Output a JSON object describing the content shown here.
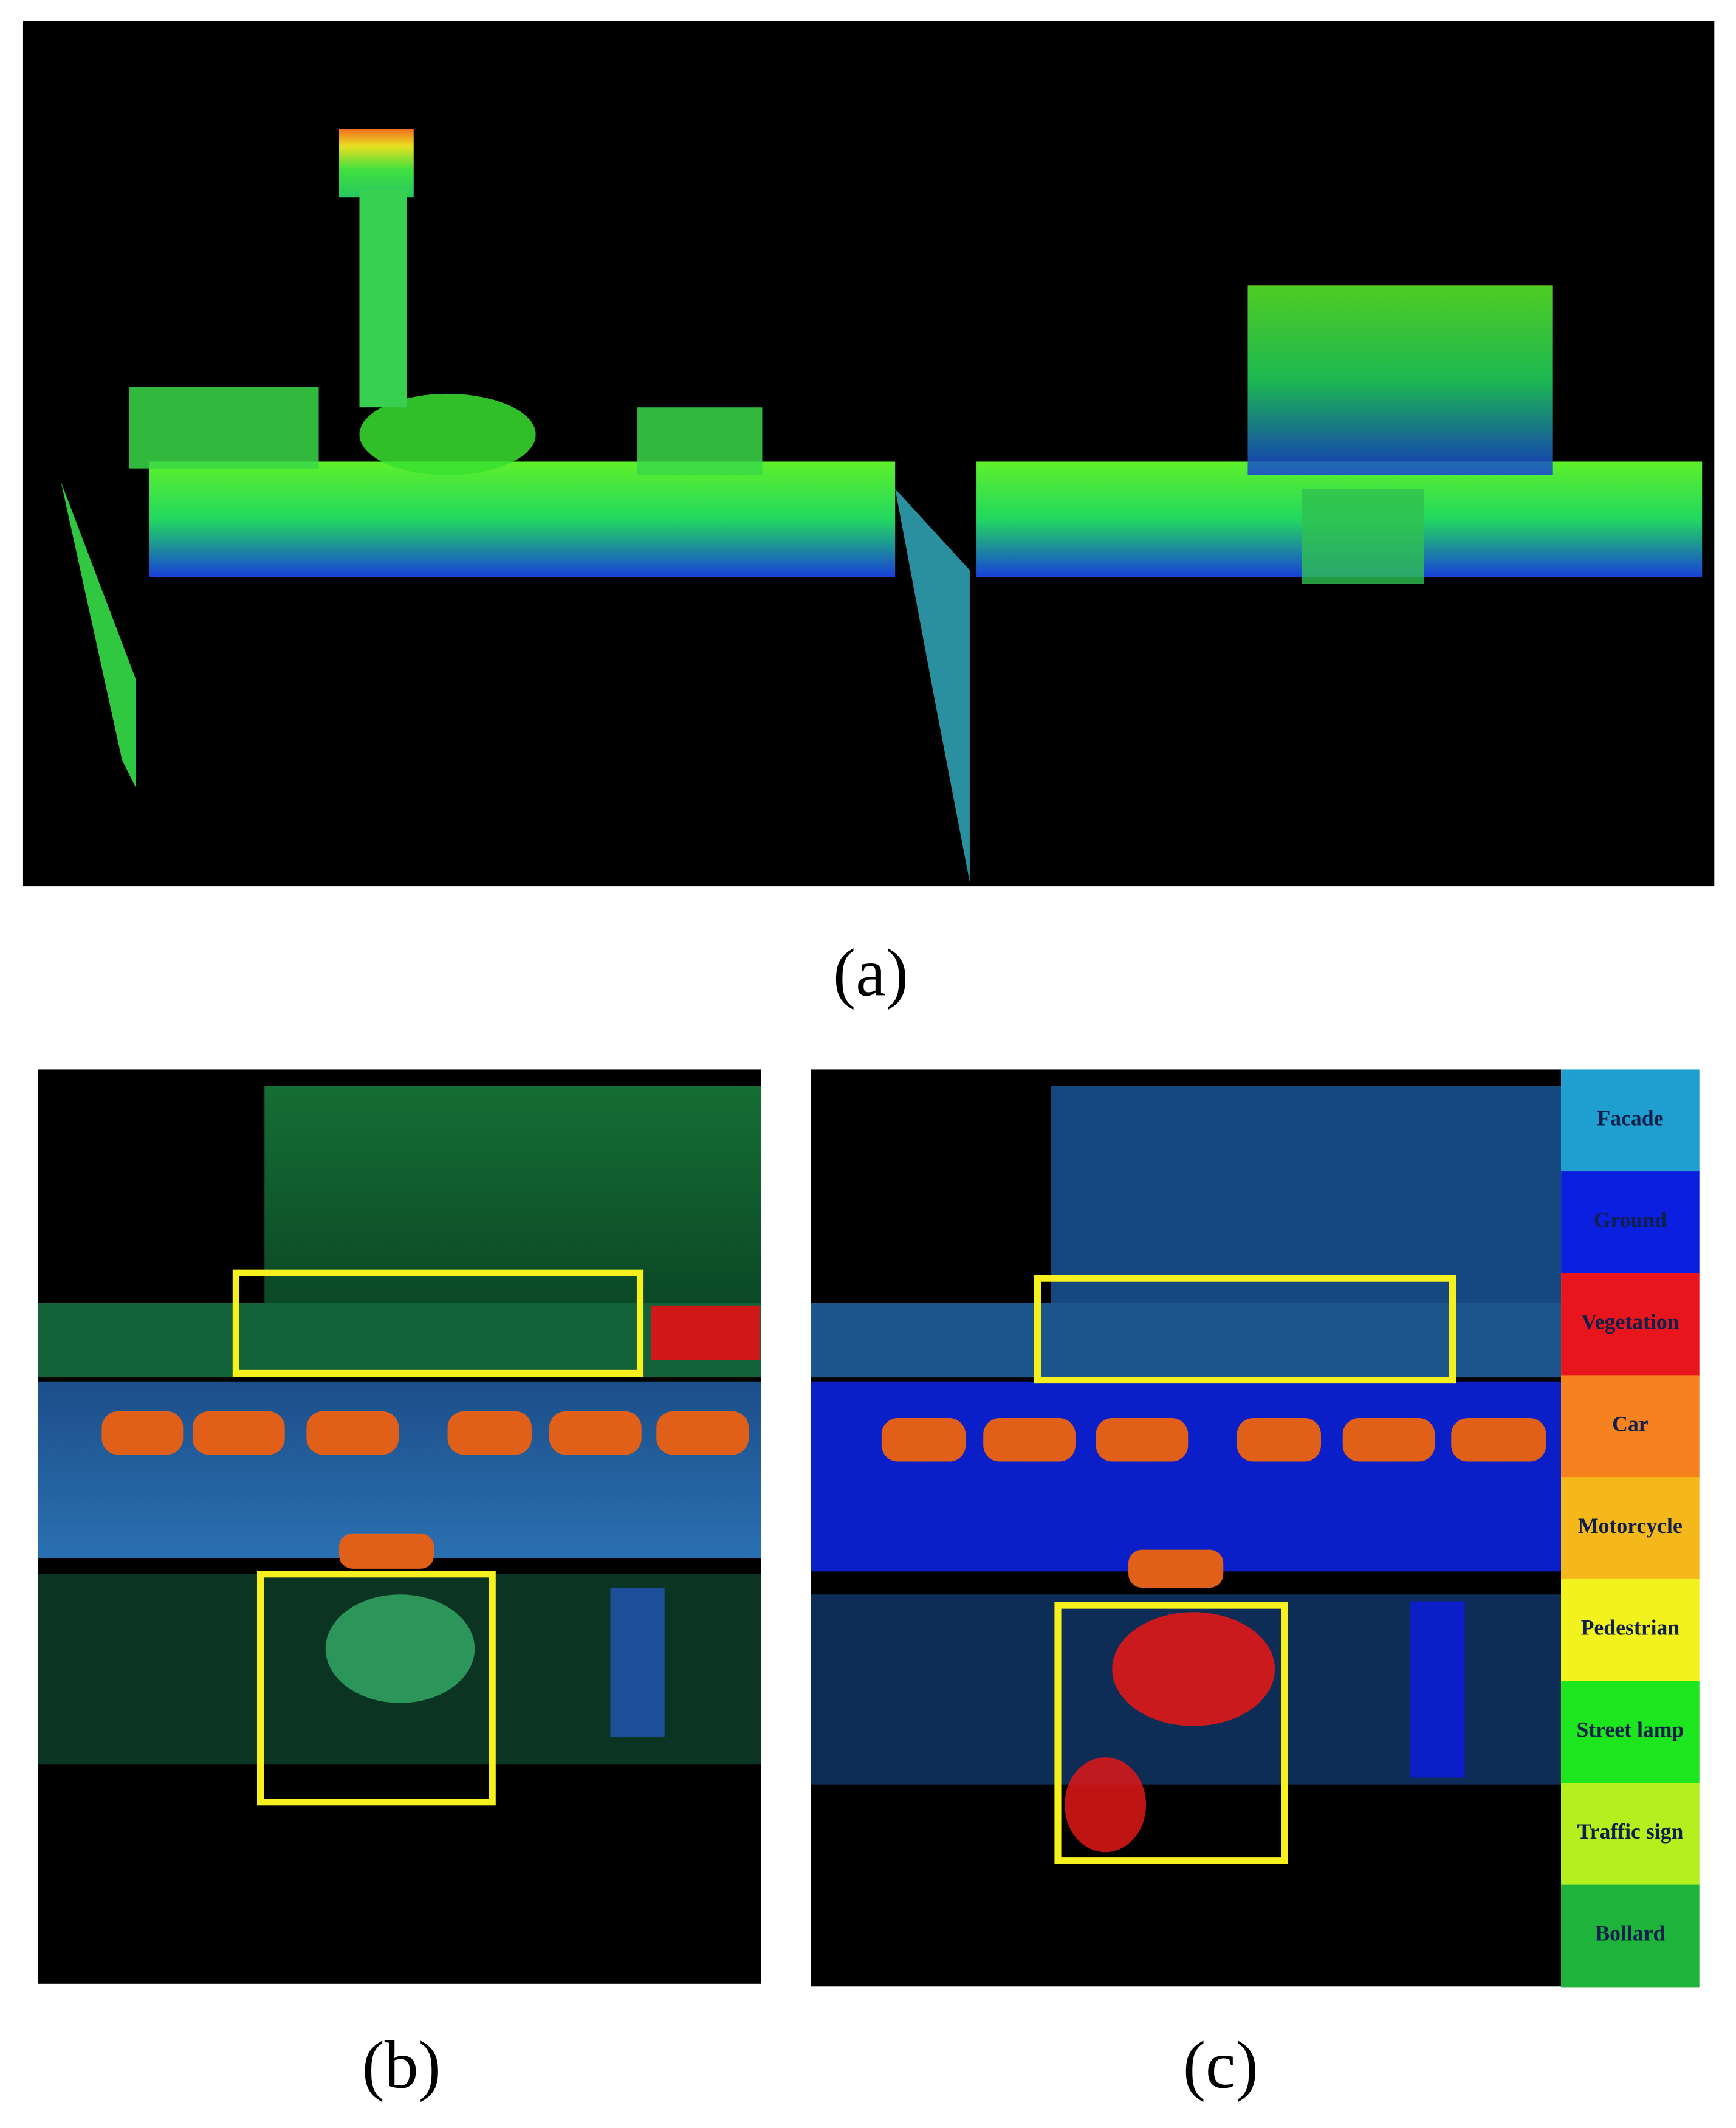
{
  "captions": {
    "a": "(a)",
    "b": "(b)",
    "c": "(c)"
  },
  "legend": [
    {
      "label": "Facade",
      "color": "#1e9fd0"
    },
    {
      "label": "Ground",
      "color": "#0a1fe0"
    },
    {
      "label": "Vegetation",
      "color": "#e8161c"
    },
    {
      "label": "Car",
      "color": "#f5821f"
    },
    {
      "label": "Motorcycle",
      "color": "#f5b81a"
    },
    {
      "label": "Pedestrian",
      "color": "#f2f21e"
    },
    {
      "label": "Street lamp",
      "color": "#1ee61e"
    },
    {
      "label": "Traffic sign",
      "color": "#b4f01e"
    },
    {
      "label": "Bollard",
      "color": "#1eb43c"
    }
  ]
}
